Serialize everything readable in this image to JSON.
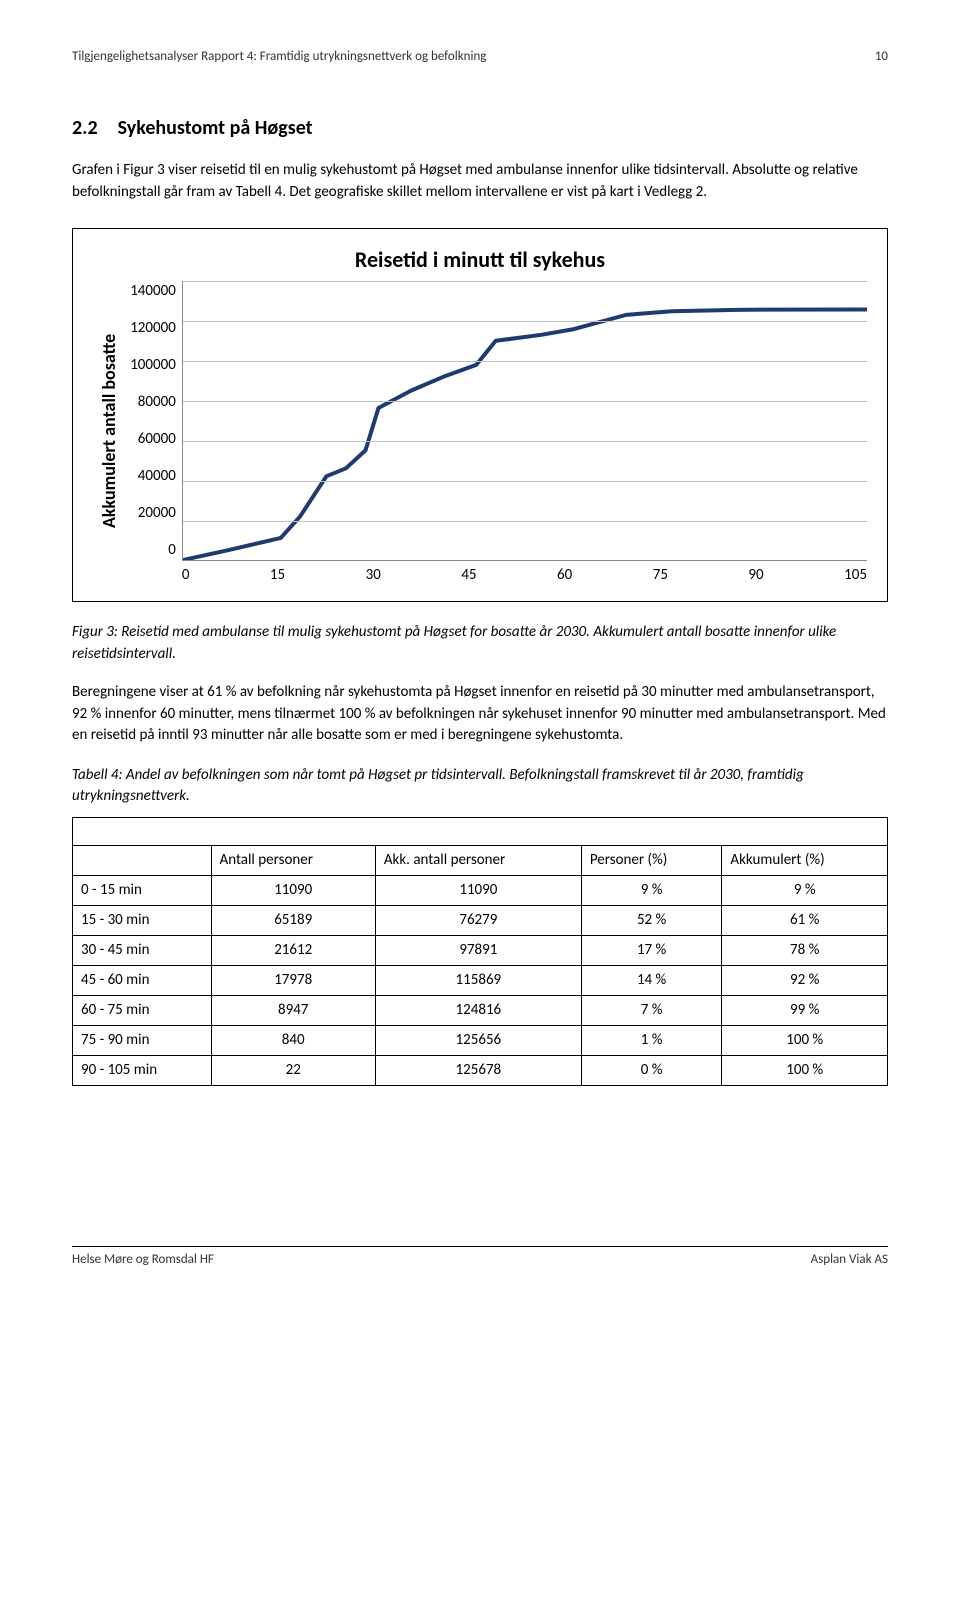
{
  "header": {
    "title": "Tilgjengelighetsanalyser Rapport 4: Framtidig utrykningsnettverk og befolkning",
    "page_number": "10"
  },
  "section": {
    "number": "2.2",
    "title": "Sykehustomt på Høgset"
  },
  "paragraph1": "Grafen i Figur 3 viser reisetid til en mulig sykehustomt på Høgset med ambulanse innenfor ulike tidsintervall. Absolutte og relative befolkningstall går fram av Tabell 4. Det geografiske skillet mellom intervallene er vist på kart i Vedlegg 2.",
  "chart": {
    "title": "Reisetid i minutt til sykehus",
    "y_label": "Akkumulert antall bosatte",
    "y_ticks": [
      "140000",
      "120000",
      "100000",
      "80000",
      "60000",
      "40000",
      "20000",
      "0"
    ],
    "x_ticks": [
      "0",
      "15",
      "30",
      "45",
      "60",
      "75",
      "90",
      "105"
    ],
    "y_max": 140000,
    "x_max": 105,
    "line_color": "#1f3a6e",
    "grid_color": "#bfbfbf",
    "background_color": "#ffffff",
    "line_width": 4,
    "data": [
      {
        "x": 0,
        "y": 0
      },
      {
        "x": 7,
        "y": 5000
      },
      {
        "x": 15,
        "y": 11090
      },
      {
        "x": 18,
        "y": 22000
      },
      {
        "x": 22,
        "y": 42000
      },
      {
        "x": 25,
        "y": 46000
      },
      {
        "x": 28,
        "y": 55000
      },
      {
        "x": 30,
        "y": 76279
      },
      {
        "x": 35,
        "y": 85000
      },
      {
        "x": 40,
        "y": 92000
      },
      {
        "x": 45,
        "y": 97891
      },
      {
        "x": 48,
        "y": 110000
      },
      {
        "x": 55,
        "y": 113000
      },
      {
        "x": 60,
        "y": 115869
      },
      {
        "x": 68,
        "y": 123000
      },
      {
        "x": 75,
        "y": 124816
      },
      {
        "x": 85,
        "y": 125500
      },
      {
        "x": 90,
        "y": 125656
      },
      {
        "x": 105,
        "y": 125678
      }
    ]
  },
  "figure_caption": "Figur 3: Reisetid med ambulanse til mulig sykehustomt på Høgset for bosatte år 2030. Akkumulert antall bosatte innenfor ulike reisetidsintervall.",
  "paragraph2": "Beregningene viser at 61 % av befolkning når sykehustomta på Høgset innenfor en reisetid på 30 minutter med ambulansetransport, 92 % innenfor 60 minutter, mens tilnærmet 100 % av befolkningen når sykehuset innenfor 90 minutter med ambulansetransport. Med en reisetid på inntil 93 minutter når alle bosatte som er med i beregningene sykehustomta.",
  "table_caption": "Tabell 4: Andel av befolkningen som når tomt på Høgset pr tidsintervall. Befolkningstall framskrevet til år 2030, framtidig utrykningsnettverk.",
  "table": {
    "columns": [
      "",
      "Antall personer",
      "Akk. antall personer",
      "Personer (%)",
      "Akkumulert (%)"
    ],
    "rows": [
      [
        "0 - 15 min",
        "11090",
        "11090",
        "9 %",
        "9 %"
      ],
      [
        "15 - 30 min",
        "65189",
        "76279",
        "52 %",
        "61 %"
      ],
      [
        "30 - 45 min",
        "21612",
        "97891",
        "17 %",
        "78 %"
      ],
      [
        "45 - 60 min",
        "17978",
        "115869",
        "14 %",
        "92 %"
      ],
      [
        "60 - 75 min",
        "8947",
        "124816",
        "7 %",
        "99 %"
      ],
      [
        "75 - 90 min",
        "840",
        "125656",
        "1 %",
        "100 %"
      ],
      [
        "90 - 105 min",
        "22",
        "125678",
        "0 %",
        "100 %"
      ]
    ]
  },
  "footer": {
    "left": "Helse Møre og Romsdal HF",
    "right": "Asplan Viak AS"
  }
}
